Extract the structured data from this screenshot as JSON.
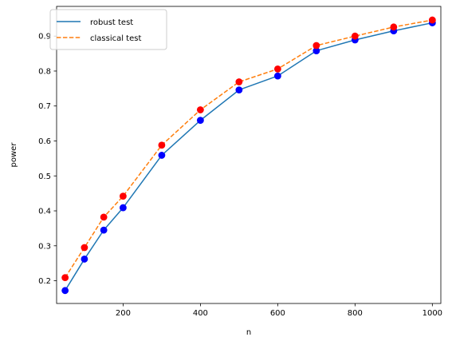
{
  "chart_data": {
    "type": "line",
    "title": "",
    "xlabel": "n",
    "ylabel": "power",
    "xlim": [
      28,
      1022
    ],
    "ylim": [
      0.135,
      0.985
    ],
    "x_ticks": [
      200,
      400,
      600,
      800,
      1000
    ],
    "y_ticks": [
      0.2,
      0.3,
      0.4,
      0.5,
      0.6,
      0.7,
      0.8,
      0.9
    ],
    "x": [
      50,
      100,
      150,
      200,
      300,
      400,
      500,
      600,
      700,
      800,
      900,
      1000
    ],
    "series": [
      {
        "name": "robust test",
        "line_color": "#1f77b4",
        "line_style": "solid",
        "marker_color": "#0000ff",
        "values": [
          0.172,
          0.262,
          0.345,
          0.409,
          0.559,
          0.659,
          0.746,
          0.786,
          0.858,
          0.889,
          0.915,
          0.938
        ]
      },
      {
        "name": "classical test",
        "line_color": "#ff7f0e",
        "line_style": "dashed",
        "marker_color": "#ff0000",
        "values": [
          0.209,
          0.295,
          0.382,
          0.442,
          0.588,
          0.689,
          0.769,
          0.806,
          0.873,
          0.9,
          0.926,
          0.946
        ]
      }
    ],
    "grid": false,
    "legend_position": "upper-left"
  }
}
